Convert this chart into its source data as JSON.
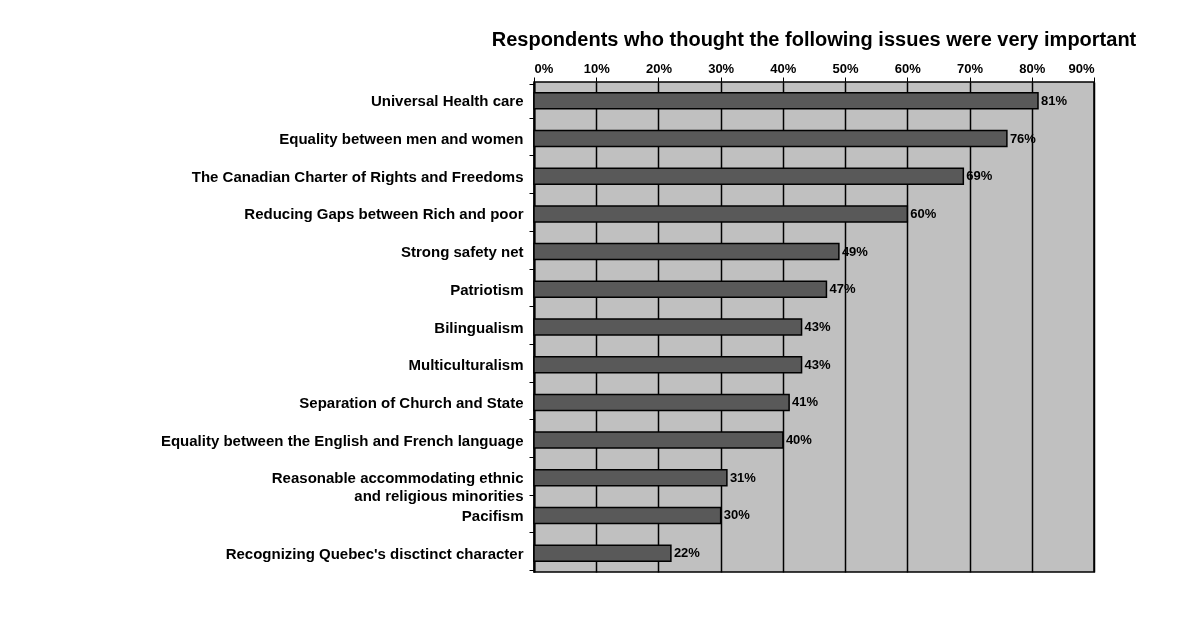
{
  "chart_data": {
    "type": "bar",
    "orientation": "horizontal",
    "title": "Respondents who thought the following issues were very important",
    "categories": [
      "Universal Health care",
      "Equality between men and women",
      "The Canadian Charter of Rights and Freedoms",
      "Reducing Gaps between Rich and poor",
      "Strong safety net",
      "Patriotism",
      "Bilingualism",
      "Multiculturalism",
      "Separation of Church and State",
      "Equality between the English and French language",
      "Reasonable accommodating ethnic\nand religious minorities",
      "Pacifism",
      "Recognizing Quebec's disctinct character"
    ],
    "values": [
      81,
      76,
      69,
      60,
      49,
      47,
      43,
      43,
      41,
      40,
      31,
      30,
      22
    ],
    "value_labels": [
      "81%",
      "76%",
      "69%",
      "60%",
      "49%",
      "47%",
      "43%",
      "43%",
      "41%",
      "40%",
      "31%",
      "30%",
      "22%"
    ],
    "color": "#595959",
    "xlim": [
      0,
      90
    ],
    "xticks": [
      {
        "value": 0,
        "label": "0%"
      },
      {
        "value": 10,
        "label": "10%"
      },
      {
        "value": 20,
        "label": "20%"
      },
      {
        "value": 30,
        "label": "30%"
      },
      {
        "value": 40,
        "label": "40%"
      },
      {
        "value": 50,
        "label": "50%"
      },
      {
        "value": 60,
        "label": "60%"
      },
      {
        "value": 70,
        "label": "70%"
      },
      {
        "value": 80,
        "label": "80%"
      },
      {
        "value": 90,
        "label": "90%"
      }
    ],
    "grid": "x"
  }
}
